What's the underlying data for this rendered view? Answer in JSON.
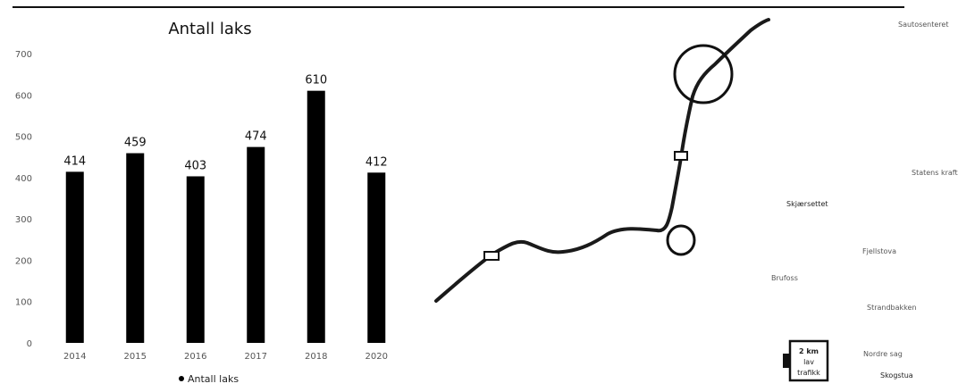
{
  "chart_data": {
    "type": "bar",
    "title": "Antall laks",
    "categories": [
      "2014",
      "2015",
      "2016",
      "2017",
      "2018",
      "2020"
    ],
    "series": [
      {
        "name": "Antall laks",
        "values": [
          414,
          459,
          403,
          474,
          610,
          412
        ]
      }
    ],
    "ylim": [
      0,
      700
    ],
    "yticks": [
      0,
      100,
      200,
      300,
      400,
      500,
      600,
      700
    ],
    "grid": false,
    "legend": "bottom",
    "bar_color": "#000000"
  },
  "map": {
    "labels": [
      "Sautosenteret",
      "Statens kraftnett",
      "Skjærsettet",
      "Fjellstova",
      "Brufoss",
      "Strandbakken",
      "Nordre sag",
      "Skogstua"
    ],
    "scale": [
      "2 km",
      "lav",
      "trafikk"
    ],
    "line_color": "#1a1a1a"
  }
}
